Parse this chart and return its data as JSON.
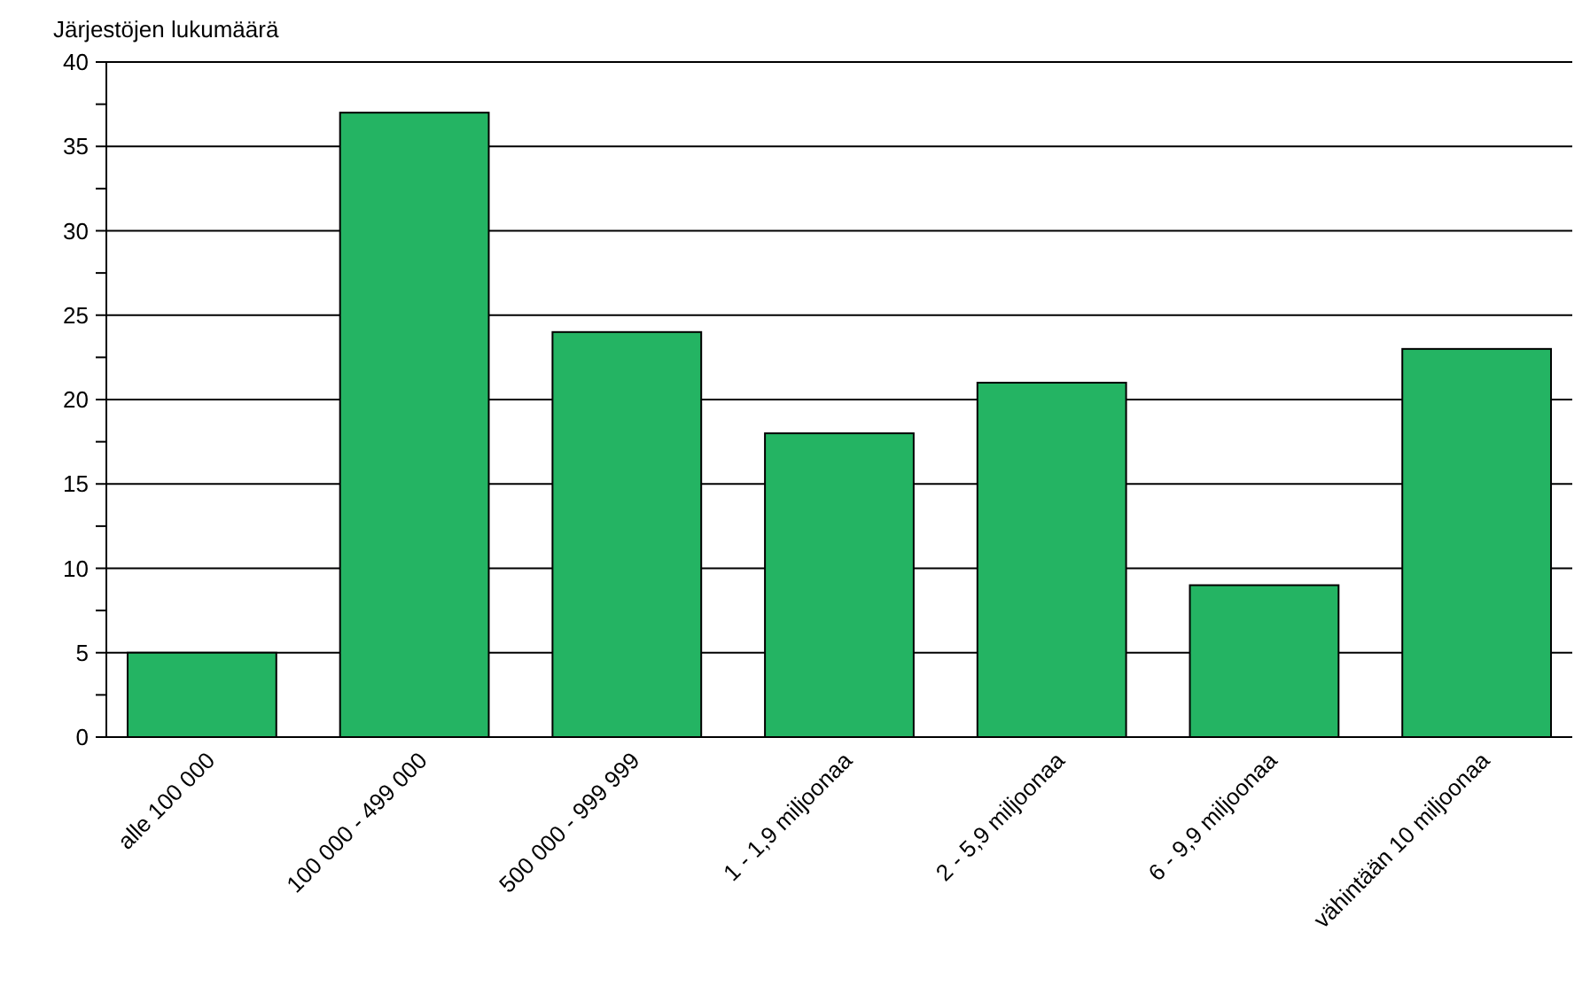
{
  "chart_data": {
    "type": "bar",
    "ylabel": "Järjestöjen lukumäärä",
    "categories": [
      "alle 100 000",
      "100 000 - 499 000",
      "500 000 - 999 999",
      "1 - 1,9 miljoonaa",
      "2 - 5,9 miljoonaa",
      "6 - 9,9 miljoonaa",
      "vähintään 10 miljoonaa"
    ],
    "values": [
      5,
      37,
      24,
      18,
      21,
      9,
      23
    ],
    "color": "#24b463",
    "ylim": [
      0,
      40
    ],
    "yticks": [
      0,
      {
        "value": 2.5,
        "label": null
      },
      5,
      {
        "value": 7.5,
        "label": null
      },
      10,
      {
        "value": 12.5,
        "label": null
      },
      15,
      {
        "value": 17.5,
        "label": null
      },
      20,
      {
        "value": 22.5,
        "label": null
      },
      25,
      {
        "value": 27.5,
        "label": null
      },
      30,
      {
        "value": 32.5,
        "label": null
      },
      35,
      {
        "value": 37.5,
        "label": null
      },
      40
    ],
    "grid": "y"
  }
}
